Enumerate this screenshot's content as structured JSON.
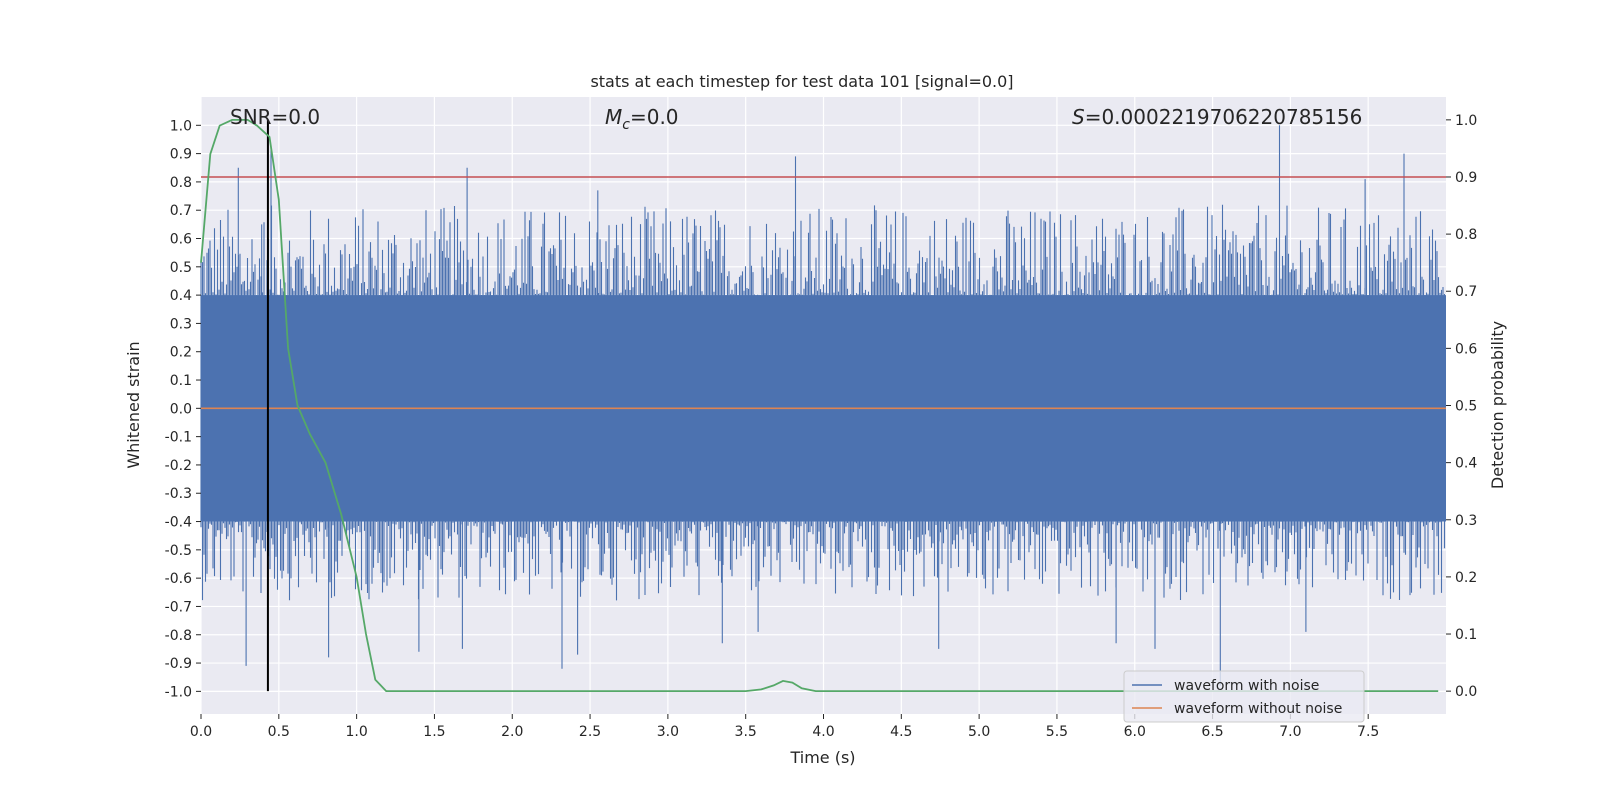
{
  "chart_data": {
    "type": "line",
    "title": "stats at each timestep for test data 101 [signal=0.0]",
    "xlabel": "Time (s)",
    "ylabel_left": "Whitened strain",
    "ylabel_right": "Detection probability",
    "xlim": [
      0.0,
      8.0
    ],
    "ylim_left": [
      -1.08,
      1.1
    ],
    "ylim_right": [
      -0.04,
      1.04
    ],
    "x_ticks": [
      "0.0",
      "0.5",
      "1.0",
      "1.5",
      "2.0",
      "2.5",
      "3.0",
      "3.5",
      "4.0",
      "4.5",
      "5.0",
      "5.5",
      "6.0",
      "6.5",
      "7.0",
      "7.5"
    ],
    "y_ticks_left": [
      "1.0",
      "0.9",
      "0.8",
      "0.7",
      "0.6",
      "0.5",
      "0.4",
      "0.3",
      "0.2",
      "0.1",
      "0.0",
      "-0.1",
      "-0.2",
      "-0.3",
      "-0.4",
      "-0.5",
      "-0.6",
      "-0.7",
      "-0.8",
      "-0.9",
      "-1.0"
    ],
    "y_ticks_right": [
      "1.0",
      "0.9",
      "0.8",
      "0.7",
      "0.6",
      "0.5",
      "0.4",
      "0.3",
      "0.2",
      "0.1",
      "0.0"
    ],
    "annotations": {
      "snr": "SNR=0.0",
      "mc_symbol": "M",
      "mc_sub": "c",
      "mc_value": "=0.0",
      "s_symbol": "S",
      "s_value": "=0.0002219706220785156"
    },
    "threshold": {
      "value": 0.9,
      "axis": "right",
      "color": "#c44e52"
    },
    "vertical_marker": {
      "x": 0.43,
      "color": "#000000"
    },
    "series": [
      {
        "name": "waveform with noise",
        "axis": "left",
        "color": "#4c72b0",
        "style": "dense noise trace",
        "typical_range": [
          -0.4,
          0.4
        ],
        "peaks": [
          [
            0.24,
            0.85
          ],
          [
            0.39,
            0.65
          ],
          [
            0.45,
            0.92
          ],
          [
            1.71,
            0.85
          ],
          [
            2.55,
            0.77
          ],
          [
            3.82,
            0.89
          ],
          [
            6.93,
            1.0
          ],
          [
            7.48,
            0.81
          ],
          [
            7.73,
            0.9
          ]
        ],
        "troughs": [
          [
            0.29,
            -0.91
          ],
          [
            0.82,
            -0.88
          ],
          [
            1.4,
            -0.86
          ],
          [
            1.68,
            -0.85
          ],
          [
            2.32,
            -0.92
          ],
          [
            2.42,
            -0.87
          ],
          [
            3.35,
            -0.83
          ],
          [
            3.58,
            -0.79
          ],
          [
            4.74,
            -0.85
          ],
          [
            5.88,
            -0.83
          ],
          [
            6.13,
            -0.85
          ],
          [
            6.55,
            -0.98
          ],
          [
            7.1,
            -0.79
          ]
        ]
      },
      {
        "name": "waveform without noise",
        "axis": "left",
        "color": "#dd8452",
        "y": 0.0
      },
      {
        "name": "detection probability",
        "axis": "right",
        "color": "#55a868",
        "x": [
          0.0,
          0.06,
          0.12,
          0.2,
          0.3,
          0.36,
          0.44,
          0.5,
          0.56,
          0.62,
          0.7,
          0.8,
          0.9,
          1.0,
          1.06,
          1.12,
          1.19,
          1.3,
          2.0,
          3.0,
          3.5,
          3.6,
          3.68,
          3.74,
          3.8,
          3.86,
          3.95,
          4.0,
          5.0,
          6.0,
          7.0,
          7.95
        ],
        "y": [
          0.75,
          0.94,
          0.99,
          1.0,
          1.0,
          0.99,
          0.97,
          0.86,
          0.6,
          0.5,
          0.45,
          0.4,
          0.31,
          0.2,
          0.1,
          0.02,
          0.0,
          0.0,
          0.0,
          0.0,
          0.0,
          0.003,
          0.01,
          0.018,
          0.015,
          0.005,
          0.0,
          0.0,
          0.0,
          0.0,
          0.0,
          0.0
        ]
      }
    ],
    "legend": {
      "placement": "lower-right",
      "entries": [
        {
          "label": "waveform with noise",
          "color": "#4c72b0"
        },
        {
          "label": "waveform without noise",
          "color": "#dd8452"
        }
      ]
    },
    "grid": true,
    "style": {
      "background": "#eaeaf2",
      "grid_color": "#ffffff"
    }
  }
}
